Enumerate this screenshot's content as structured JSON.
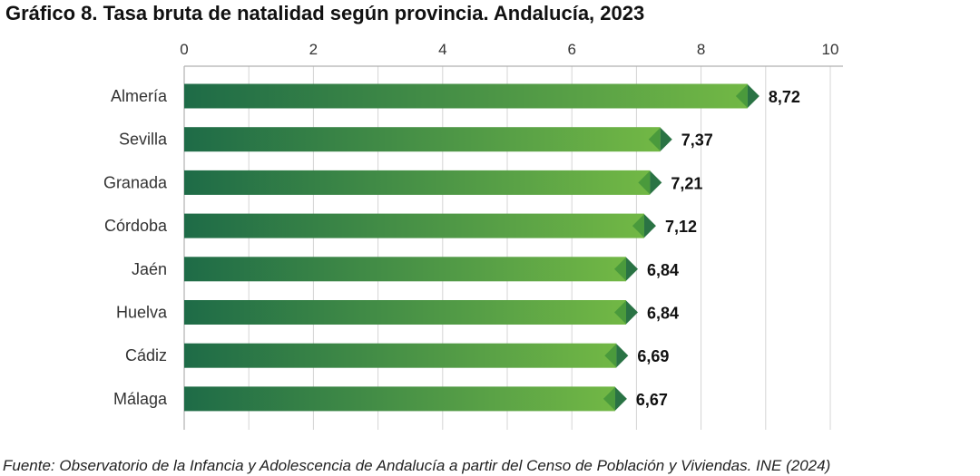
{
  "title": "Gráfico 8. Tasa bruta de natalidad según provincia. Andalucía, 2023",
  "source": "Fuente: Observatorio de la Infancia y Adolescencia de Andalucía a partir del Censo de Población y Viviendas. INE (2024)",
  "colors": {
    "bar_start": "#1e6b47",
    "bar_end": "#72b845",
    "grid": "#d4d4d4",
    "axis": "#b0b0b0"
  },
  "chart_data": {
    "type": "bar",
    "orientation": "horizontal",
    "title": "Gráfico 8. Tasa bruta de natalidad según provincia. Andalucía, 2023",
    "categories": [
      "Almería",
      "Sevilla",
      "Granada",
      "Córdoba",
      "Jaén",
      "Huelva",
      "Cádiz",
      "Málaga"
    ],
    "values": [
      8.72,
      7.37,
      7.21,
      7.12,
      6.84,
      6.84,
      6.69,
      6.67
    ],
    "value_labels": [
      "8,72",
      "7,37",
      "7,21",
      "7,12",
      "6,84",
      "6,84",
      "6,69",
      "6,67"
    ],
    "xlim": [
      0,
      10
    ],
    "xticks": [
      0,
      2,
      4,
      6,
      8,
      10
    ],
    "xtick_labels": [
      "0",
      "2",
      "4",
      "6",
      "8",
      "10"
    ],
    "xaxis_position": "top",
    "grid": true
  }
}
